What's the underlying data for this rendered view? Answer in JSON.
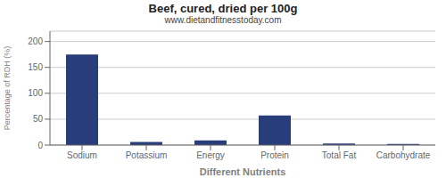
{
  "chart_data": {
    "type": "bar",
    "title": "Beef, cured, dried per 100g",
    "subtitle": "www.dietandfitnesstoday.com",
    "xlabel": "Different Nutrients",
    "ylabel": "Percentage of RDH (%)",
    "categories": [
      "Sodium",
      "Potassium",
      "Energy",
      "Protein",
      "Total Fat",
      "Carbohydrate"
    ],
    "values": [
      175,
      6,
      9,
      57,
      3,
      2
    ],
    "color": "#283e7a",
    "ylim": [
      0,
      220
    ],
    "yticks": [
      0,
      50,
      100,
      150,
      200
    ],
    "grid": true
  }
}
